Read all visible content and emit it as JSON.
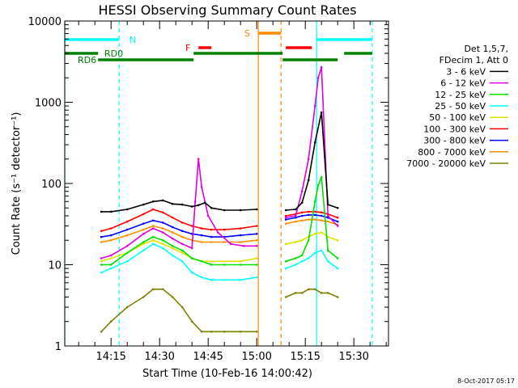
{
  "chart_data": {
    "type": "line",
    "title": "HESSI Observing Summary Count Rates",
    "xlabel": "Start Time (10-Feb-16 14:00:42)",
    "ylabel": "Count Rate (s⁻¹ detector⁻¹)",
    "y_scale": "log",
    "ylim": [
      1,
      10000
    ],
    "xlim": [
      "14:00:42",
      "15:40:42"
    ],
    "x_ticks": [
      "14:15",
      "14:30",
      "14:45",
      "15:00",
      "15:15",
      "15:30"
    ],
    "y_ticks": [
      "1",
      "10",
      "100",
      "1000",
      "10000"
    ],
    "timestamp": "8-Oct-2017 05:17",
    "legend": {
      "placement": "right",
      "header": [
        "Det 1,5,7,",
        "FDecim 1, Att 0"
      ],
      "entries": [
        {
          "label": "3 - 6 keV",
          "color": "#000000"
        },
        {
          "label": "6 - 12 keV",
          "color": "#e000e0"
        },
        {
          "label": "12 - 25 keV",
          "color": "#00e000"
        },
        {
          "label": "25 - 50 keV",
          "color": "#00ffff"
        },
        {
          "label": "50 - 100 keV",
          "color": "#e0e000"
        },
        {
          "label": "100 - 300 keV",
          "color": "#ff0000"
        },
        {
          "label": "300 - 800 keV",
          "color": "#0000ff"
        },
        {
          "label": "800 - 7000 keV",
          "color": "#ff8c00"
        },
        {
          "label": "7000 - 20000 keV",
          "color": "#808000"
        }
      ]
    },
    "flag_bars": [
      {
        "label": "N",
        "color": "#00ffff",
        "segments": [
          [
            "14:00:42",
            "14:17:30"
          ],
          [
            "15:18:30",
            "15:35:40"
          ]
        ]
      },
      {
        "label": "RD0",
        "color": "#008000",
        "segments": [
          [
            "14:00:42",
            "14:11:00"
          ],
          [
            "14:40:30",
            "15:08:00"
          ],
          [
            "15:27:00",
            "15:35:40"
          ]
        ]
      },
      {
        "label": "RD6",
        "color": "#008000",
        "segments": [
          [
            "14:11:00",
            "14:40:30"
          ],
          [
            "15:08:00",
            "15:25:00"
          ]
        ]
      },
      {
        "label": "F",
        "color": "#ff0000",
        "segments": [
          [
            "14:42:00",
            "14:46:00"
          ],
          [
            "15:09:00",
            "15:17:00"
          ]
        ]
      },
      {
        "label": "S",
        "color": "#ff8c00",
        "segments": [
          [
            "15:00:30",
            "15:07:30"
          ]
        ]
      }
    ],
    "vertical_markers": [
      {
        "time": "14:00:42",
        "color": "#00ffff",
        "style": "solid"
      },
      {
        "time": "14:17:30",
        "color": "#00ffff",
        "style": "dashed"
      },
      {
        "time": "15:00:30",
        "color": "#ff8c00",
        "style": "solid"
      },
      {
        "time": "15:07:30",
        "color": "#ff8c00",
        "style": "dashed"
      },
      {
        "time": "15:18:30",
        "color": "#00ffff",
        "style": "solid"
      },
      {
        "time": "15:35:40",
        "color": "#00ffff",
        "style": "dashed"
      }
    ],
    "data_gaps": [
      [
        "15:00:30",
        "15:09:00"
      ]
    ],
    "series": [
      {
        "name": "3 - 6 keV",
        "color": "#000000",
        "x": [
          "14:12",
          "14:15",
          "14:20",
          "14:25",
          "14:28",
          "14:31",
          "14:34",
          "14:37",
          "14:40",
          "14:42",
          "14:44",
          "14:46",
          "14:50",
          "14:55",
          "15:00",
          "15:09",
          "15:12",
          "15:14",
          "15:16",
          "15:18",
          "15:20",
          "15:22",
          "15:25"
        ],
        "y": [
          45,
          45,
          48,
          55,
          60,
          62,
          56,
          55,
          52,
          54,
          58,
          50,
          47,
          47,
          48,
          47,
          48,
          58,
          110,
          320,
          750,
          55,
          50
        ]
      },
      {
        "name": "6 - 12 keV",
        "color": "#e000e0",
        "x": [
          "14:12",
          "14:15",
          "14:20",
          "14:25",
          "14:28",
          "14:31",
          "14:34",
          "14:37",
          "14:40",
          "14:41",
          "14:42",
          "14:43",
          "14:45",
          "14:48",
          "14:52",
          "14:56",
          "15:00",
          "15:09",
          "15:12",
          "15:14",
          "15:16",
          "15:18",
          "15:19",
          "15:20",
          "15:22",
          "15:25"
        ],
        "y": [
          12,
          13,
          17,
          24,
          28,
          25,
          21,
          18,
          16,
          60,
          200,
          90,
          40,
          25,
          18,
          17,
          17,
          38,
          40,
          80,
          200,
          900,
          2000,
          2700,
          40,
          30
        ]
      },
      {
        "name": "12 - 25 keV",
        "color": "#00e000",
        "x": [
          "14:12",
          "14:15",
          "14:20",
          "14:25",
          "14:28",
          "14:31",
          "14:34",
          "14:37",
          "14:40",
          "14:43",
          "14:46",
          "14:50",
          "14:55",
          "15:00",
          "15:09",
          "15:12",
          "15:14",
          "15:16",
          "15:18",
          "15:19",
          "15:20",
          "15:22",
          "15:25"
        ],
        "y": [
          10,
          10,
          14,
          19,
          22,
          20,
          17,
          15,
          12,
          11,
          10,
          10,
          10,
          10,
          11,
          12,
          13,
          20,
          60,
          95,
          120,
          15,
          12
        ]
      },
      {
        "name": "25 - 50 keV",
        "color": "#00ffff",
        "x": [
          "14:12",
          "14:15",
          "14:20",
          "14:25",
          "14:28",
          "14:31",
          "14:34",
          "14:37",
          "14:40",
          "14:43",
          "14:46",
          "14:50",
          "14:55",
          "15:00",
          "15:09",
          "15:12",
          "15:14",
          "15:16",
          "15:18",
          "15:20",
          "15:22",
          "15:25"
        ],
        "y": [
          8,
          9,
          11,
          15,
          18,
          16,
          13,
          11,
          8,
          7,
          6.5,
          6.5,
          6.5,
          7,
          9,
          10,
          11,
          12,
          14,
          15,
          11,
          9
        ]
      },
      {
        "name": "50 - 100 keV",
        "color": "#e0e000",
        "x": [
          "14:12",
          "14:15",
          "14:20",
          "14:25",
          "14:28",
          "14:31",
          "14:34",
          "14:37",
          "14:40",
          "14:43",
          "14:46",
          "14:50",
          "14:55",
          "15:00",
          "15:09",
          "15:12",
          "15:14",
          "15:16",
          "15:18",
          "15:20",
          "15:22",
          "15:25"
        ],
        "y": [
          11,
          12,
          14,
          18,
          20,
          18,
          16,
          14,
          12,
          11,
          11,
          11,
          11,
          12,
          18,
          19,
          20,
          22,
          24,
          25,
          22,
          20
        ]
      },
      {
        "name": "100 - 300 keV",
        "color": "#ff0000",
        "x": [
          "14:12",
          "14:15",
          "14:20",
          "14:25",
          "14:28",
          "14:31",
          "14:34",
          "14:37",
          "14:40",
          "14:43",
          "14:46",
          "14:50",
          "14:55",
          "15:00",
          "15:09",
          "15:12",
          "15:14",
          "15:16",
          "15:18",
          "15:20",
          "15:22",
          "15:25"
        ],
        "y": [
          26,
          28,
          34,
          42,
          48,
          44,
          38,
          33,
          30,
          28,
          27,
          27,
          28,
          30,
          40,
          42,
          44,
          45,
          45,
          44,
          42,
          38
        ]
      },
      {
        "name": "300 - 800 keV",
        "color": "#0000ff",
        "x": [
          "14:12",
          "14:15",
          "14:20",
          "14:25",
          "14:28",
          "14:31",
          "14:34",
          "14:37",
          "14:40",
          "14:43",
          "14:46",
          "14:50",
          "14:55",
          "15:00",
          "15:09",
          "15:12",
          "15:14",
          "15:16",
          "15:18",
          "15:20",
          "15:22",
          "15:25"
        ],
        "y": [
          22,
          23,
          27,
          32,
          35,
          33,
          29,
          26,
          24,
          23,
          22,
          22,
          23,
          24,
          36,
          38,
          40,
          41,
          41,
          40,
          38,
          34
        ]
      },
      {
        "name": "800 - 7000 keV",
        "color": "#ff8c00",
        "x": [
          "14:12",
          "14:15",
          "14:20",
          "14:25",
          "14:28",
          "14:31",
          "14:34",
          "14:37",
          "14:40",
          "14:43",
          "14:46",
          "14:50",
          "14:55",
          "15:00",
          "15:09",
          "15:12",
          "15:14",
          "15:16",
          "15:18",
          "15:20",
          "15:22",
          "15:25"
        ],
        "y": [
          19,
          20,
          23,
          27,
          30,
          28,
          25,
          22,
          20,
          19,
          19,
          19,
          19,
          20,
          32,
          34,
          35,
          36,
          36,
          35,
          34,
          31
        ]
      },
      {
        "name": "7000 - 20000 keV",
        "color": "#808000",
        "x": [
          "14:12",
          "14:15",
          "14:20",
          "14:25",
          "14:28",
          "14:31",
          "14:34",
          "14:37",
          "14:40",
          "14:43",
          "14:46",
          "14:50",
          "14:55",
          "15:00",
          "15:09",
          "15:12",
          "15:14",
          "15:16",
          "15:18",
          "15:20",
          "15:22",
          "15:25"
        ],
        "y": [
          1.5,
          2,
          3,
          4,
          5,
          5,
          4,
          3,
          2,
          1.5,
          1.5,
          1.5,
          1.5,
          1.5,
          4,
          4.5,
          4.5,
          5,
          5,
          4.5,
          4.5,
          4
        ]
      }
    ]
  }
}
